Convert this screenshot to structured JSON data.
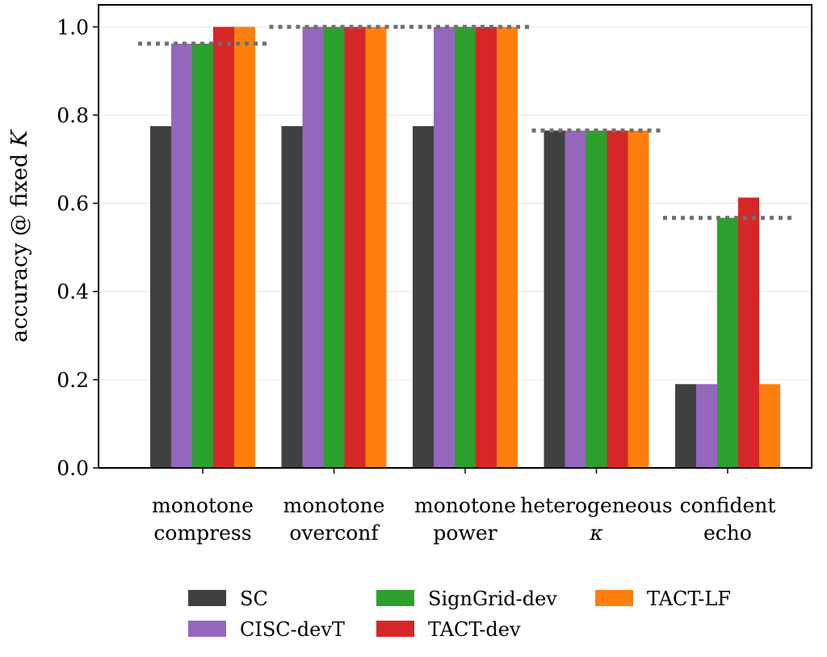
{
  "chart_data": {
    "type": "bar",
    "categories": [
      [
        "monotone",
        "compress"
      ],
      [
        "monotone",
        "overconf"
      ],
      [
        "monotone",
        "power"
      ],
      [
        "heterogeneous",
        "κ"
      ],
      [
        "confident",
        "echo"
      ]
    ],
    "series": [
      {
        "name": "SC",
        "color": "#404040",
        "values": [
          0.775,
          0.775,
          0.775,
          0.765,
          0.19
        ]
      },
      {
        "name": "CISC-devT",
        "color": "#9467bd",
        "values": [
          0.962,
          1.0,
          1.0,
          0.765,
          0.19
        ]
      },
      {
        "name": "SignGrid-dev",
        "color": "#2ca02c",
        "values": [
          0.962,
          1.0,
          1.0,
          0.765,
          0.567
        ]
      },
      {
        "name": "TACT-dev",
        "color": "#d62728",
        "values": [
          1.0,
          1.0,
          1.0,
          0.765,
          0.613
        ]
      },
      {
        "name": "TACT-LF",
        "color": "#ff7f0e",
        "values": [
          1.0,
          1.0,
          1.0,
          0.765,
          0.19
        ]
      }
    ],
    "reference_lines": [
      0.962,
      1.0,
      1.0,
      0.765,
      0.567
    ],
    "reference_line_style": "dotted grey",
    "ylabel": "accuracy @ fixed K",
    "xlabel": "",
    "ylim": [
      0,
      1.05
    ],
    "yticks": [
      "0.0",
      "0.2",
      "0.4",
      "0.6",
      "0.8",
      "1.0"
    ],
    "grid": "horizontal",
    "legend_placement": "bottom-center",
    "legend_columns": 3
  }
}
